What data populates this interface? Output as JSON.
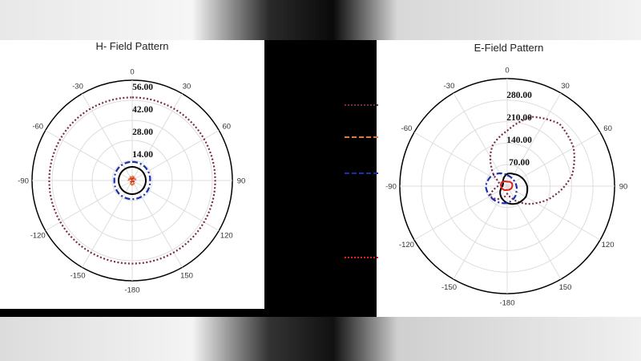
{
  "colors": {
    "series1": "#000000",
    "series2": "#e0201a",
    "series3": "#1a2fb0",
    "series4": "#e07a3a",
    "series5": "#7a2a4a"
  },
  "chart_data": [
    {
      "type": "polar",
      "title": "H- Field Pattern",
      "angle_ticks": [
        "0",
        "30",
        "60",
        "90",
        "120",
        "150",
        "-180",
        "-150",
        "-120",
        "-90",
        "-60",
        "-30"
      ],
      "angle_tick_degrees": [
        0,
        30,
        60,
        90,
        120,
        150,
        180,
        -150,
        -120,
        -90,
        -60,
        -30
      ],
      "radial_ticks": [
        "14.00",
        "28.00",
        "42.00",
        "56.00"
      ],
      "rlim": [
        0,
        70
      ],
      "grid": true,
      "series": [
        {
          "style": "dotted",
          "color": "#7a2a4a",
          "angles_deg": [
            0,
            45,
            90,
            135,
            180,
            225,
            270,
            315,
            360
          ],
          "r": [
            58,
            58,
            58,
            58,
            58,
            58,
            58,
            58,
            58
          ]
        },
        {
          "style": "dashdot",
          "color": "#1a2fb0",
          "angles_deg": [
            0,
            45,
            90,
            135,
            180,
            225,
            270,
            315,
            360
          ],
          "r": [
            13,
            13,
            12.5,
            13,
            13,
            13,
            12.5,
            13,
            13
          ]
        },
        {
          "style": "solid",
          "color": "#000000",
          "angles_deg": [
            0,
            45,
            90,
            135,
            180,
            225,
            270,
            315,
            360
          ],
          "r": [
            9.5,
            9.5,
            9.5,
            9.5,
            9.5,
            9.5,
            9.5,
            9.5,
            9.5
          ]
        },
        {
          "style": "dashed",
          "color": "#e07a3a",
          "angles_deg": [
            0,
            45,
            90,
            135,
            180,
            225,
            270,
            315,
            360
          ],
          "r": [
            3,
            2,
            2.5,
            2,
            3,
            2,
            2.5,
            2,
            3
          ]
        },
        {
          "style": "dotted",
          "color": "#e0201a",
          "angles_deg": [
            0,
            45,
            90,
            135,
            180,
            225,
            270,
            315,
            360
          ],
          "r": [
            1.5,
            1,
            1.2,
            1,
            1.5,
            1,
            1.2,
            1,
            1.5
          ]
        }
      ]
    },
    {
      "type": "polar",
      "title": "E-Field Pattern",
      "angle_ticks": [
        "0",
        "30",
        "60",
        "90",
        "120",
        "150",
        "-180",
        "-150",
        "-120",
        "-90",
        "-60",
        "-30"
      ],
      "angle_tick_degrees": [
        0,
        30,
        60,
        90,
        120,
        150,
        180,
        -150,
        -120,
        -90,
        -60,
        -30
      ],
      "radial_ticks": [
        "70.00",
        "140.00",
        "210.00",
        "280.00"
      ],
      "rlim": [
        0,
        350
      ],
      "grid": true,
      "series": [
        {
          "style": "dotted",
          "color": "#7a2a4a",
          "angles_deg": [
            0,
            20,
            40,
            60,
            80,
            100,
            120,
            140,
            160,
            180,
            200,
            220,
            240,
            260,
            280,
            300,
            320,
            340,
            360
          ],
          "r": [
            180,
            240,
            265,
            250,
            215,
            160,
            110,
            70,
            40,
            25,
            40,
            55,
            65,
            40,
            20,
            35,
            80,
            140,
            180
          ]
        },
        {
          "style": "solid",
          "color": "#000000",
          "angles_deg": [
            0,
            30,
            60,
            90,
            120,
            150,
            180,
            210,
            240,
            270,
            300,
            330,
            360
          ],
          "r": [
            40,
            45,
            55,
            65,
            70,
            65,
            55,
            40,
            25,
            15,
            15,
            25,
            40
          ]
        },
        {
          "style": "dashdot",
          "color": "#1a2fb0",
          "angles_deg": [
            0,
            30,
            60,
            90,
            120,
            150,
            180,
            210,
            240,
            270,
            300,
            330,
            360
          ],
          "r": [
            35,
            30,
            28,
            30,
            35,
            45,
            55,
            60,
            65,
            70,
            62,
            48,
            35
          ]
        },
        {
          "style": "solid",
          "color": "#e0201a",
          "angles_deg": [
            0,
            60,
            120,
            180,
            240,
            300,
            360
          ],
          "r": [
            14,
            18,
            15,
            12,
            18,
            22,
            14
          ]
        }
      ]
    }
  ]
}
